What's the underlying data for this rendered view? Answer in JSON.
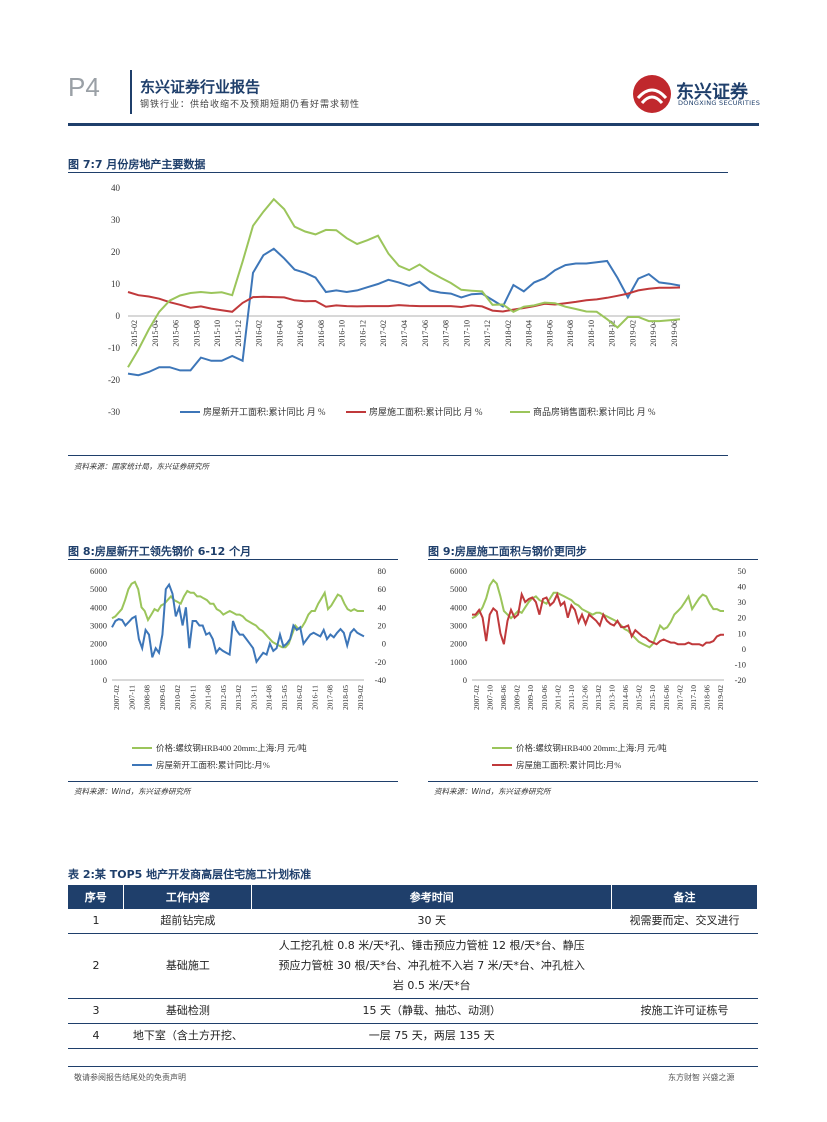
{
  "header": {
    "page": "P4",
    "report_title": "东兴证券行业报告",
    "subtitle": "钢铁行业：供给收缩不及预期短期仍看好需求韧性",
    "logo_cn": "东兴证券",
    "logo_en": "DONGXING SECURITIES"
  },
  "fig7": {
    "title": "图 7:7 月份房地产主要数据",
    "source": "资料来源：国家统计局，东兴证券研究所"
  },
  "fig8": {
    "title": "图 8:房屋新开工领先钢价 6-12 个月",
    "source": "资料来源：Wind，东兴证券研究所"
  },
  "fig9": {
    "title": "图 9:房屋施工面积与钢价更同步",
    "source": "资料来源：Wind，东兴证券研究所"
  },
  "table2": {
    "title": "表 2:某 TOP5 地产开发商高层住宅施工计划标准",
    "headers": [
      "序号",
      "工作内容",
      "参考时间",
      "备注"
    ],
    "rows": [
      {
        "no": "1",
        "work": "超前钻完成",
        "time": "30 天",
        "note": "视需要而定、交叉进行"
      },
      {
        "no": "2",
        "work": "基础施工",
        "time_l1": "人工挖孔桩 0.8 米/天*孔、锤击预应力管桩 12 根/天*台、静压",
        "time_l2": "预应力管桩 30 根/天*台、冲孔桩不入岩 7 米/天*台、冲孔桩入",
        "time_l3": "岩 0.5 米/天*台",
        "note": ""
      },
      {
        "no": "3",
        "work": "基础检测",
        "time": "15 天（静载、抽芯、动测）",
        "note": "按施工许可证栋号"
      },
      {
        "no": "4",
        "work": "地下室（含土方开挖、",
        "time": "一层 75 天，两层 135 天",
        "note": ""
      }
    ]
  },
  "footer": {
    "left": "敬请参阅报告结尾处的免责声明",
    "right": "东方财智 兴盛之源"
  },
  "colors": {
    "blue": "#3d76b8",
    "red": "#c0393b",
    "green": "#9bc55b",
    "navy": "#1f3f6b"
  },
  "chart_data": [
    {
      "type": "line",
      "id": "fig7",
      "title": "图 7:7 月份房地产主要数据",
      "xlabels": [
        "2015-02",
        "2015-04",
        "2015-06",
        "2015-08",
        "2015-10",
        "2015-12",
        "2016-02",
        "2016-04",
        "2016-06",
        "2016-08",
        "2016-10",
        "2016-12",
        "2017-02",
        "2017-04",
        "2017-06",
        "2017-08",
        "2017-10",
        "2017-12",
        "2018-02",
        "2018-04",
        "2018-06",
        "2018-08",
        "2018-10",
        "2018-12",
        "2019-02",
        "2019-04",
        "2019-06"
      ],
      "ylim": [
        -30,
        40
      ],
      "yticks": [
        -30,
        -20,
        -10,
        0,
        10,
        20,
        30,
        40
      ],
      "series": [
        {
          "name": "房屋新开工面积:累计同比 月 %",
          "color": "#3d76b8",
          "values": [
            -18,
            -18.5,
            -17.5,
            -16,
            -16,
            -17,
            -17,
            -13,
            -14,
            -14,
            -12.5,
            -14,
            13.5,
            19,
            21,
            18,
            14.5,
            13.5,
            12,
            7.5,
            8,
            7.5,
            8,
            9,
            10,
            11.3,
            10.5,
            9.4,
            10.7,
            8,
            7.3,
            7,
            5.8,
            6.8,
            7,
            5,
            3,
            9.7,
            7.7,
            10.5,
            11.8,
            14.3,
            15.9,
            16.4,
            16.4,
            16.8,
            17.2,
            11.9,
            5.8,
            11.7,
            13.1,
            10.5,
            10.1,
            9.5
          ]
        },
        {
          "name": "房屋施工面积:累计同比 月 %",
          "color": "#c0393b",
          "values": [
            7.5,
            6.5,
            6.1,
            5.4,
            4.3,
            3.5,
            2.6,
            3,
            2.3,
            1.8,
            1.3,
            4.1,
            5.9,
            6,
            5.9,
            5.8,
            4.9,
            4.6,
            4.7,
            2.9,
            3.3,
            3.1,
            3,
            3.1,
            3.1,
            3.1,
            3.4,
            3.2,
            3.1,
            3.1,
            3.1,
            3.1,
            2.8,
            3.3,
            3,
            1.7,
            1.4,
            2,
            2.5,
            3.1,
            3.8,
            3.6,
            4,
            4.4,
            4.9,
            5.2,
            5.7,
            6.3,
            7,
            8,
            8.5,
            8.8,
            8.8,
            8.9
          ]
        },
        {
          "name": "商品房销售面积:累计同比 月 %",
          "color": "#9bc55b",
          "values": [
            -16,
            -10.5,
            -4.2,
            1.3,
            4.8,
            6.4,
            7.2,
            7.5,
            7.2,
            7.4,
            6.5,
            17,
            28.2,
            32.6,
            36.5,
            33.4,
            27.9,
            26.4,
            25.5,
            26.9,
            26.8,
            24.3,
            22.5,
            23.7,
            25.1,
            19.5,
            15.7,
            14.3,
            16.1,
            13.8,
            12,
            10.3,
            8.2,
            7.9,
            7.7,
            3.5,
            3.6,
            1.3,
            2.9,
            3.3,
            4.2,
            4,
            2.9,
            2.2,
            1.4,
            1.3,
            -1,
            -3.6,
            -0.3,
            -0.3,
            -1.6,
            -1.6,
            -1.3,
            -1
          ]
        }
      ]
    },
    {
      "type": "line",
      "id": "fig8",
      "title": "图 8:房屋新开工领先钢价 6-12 个月",
      "xlabels": [
        "2007-02",
        "2007-11",
        "2008-08",
        "2009-05",
        "2010-02",
        "2010-11",
        "2011-08",
        "2012-05",
        "2013-02",
        "2013-11",
        "2014-08",
        "2015-05",
        "2016-02",
        "2016-11",
        "2017-08",
        "2018-05",
        "2019-02"
      ],
      "left_axis": {
        "ylim": [
          0,
          6000
        ],
        "ticks": [
          0,
          1000,
          2000,
          3000,
          4000,
          5000,
          6000
        ]
      },
      "right_axis": {
        "ylim": [
          -40,
          80
        ],
        "ticks": [
          -40,
          -20,
          0,
          20,
          40,
          60,
          80
        ]
      },
      "series": [
        {
          "name": "价格:螺纹钢HRB400 20mm:上海:月 元/吨",
          "axis": "left",
          "color": "#9bc55b",
          "values": [
            3400,
            3500,
            3700,
            3900,
            4400,
            5000,
            5300,
            5400,
            5000,
            4000,
            3800,
            3300,
            3600,
            3900,
            3800,
            4100,
            4200,
            4400,
            4600,
            4400,
            4300,
            4200,
            4600,
            4900,
            4800,
            4800,
            4600,
            4600,
            4500,
            4400,
            4200,
            4200,
            3900,
            3800,
            3600,
            3700,
            3800,
            3700,
            3600,
            3600,
            3500,
            3300,
            3200,
            3100,
            3000,
            2800,
            2700,
            2500,
            2300,
            2100,
            2000,
            1900,
            1800,
            1800,
            2000,
            2500,
            3000,
            2800,
            2900,
            3200,
            3600,
            3800,
            3800,
            4200,
            4500,
            4800,
            3900,
            4100,
            4400,
            4700,
            4600,
            4200,
            3900,
            3800,
            3900,
            3800,
            3800,
            3800
          ]
        },
        {
          "name": "房屋新开工面积:累计同比:月%",
          "axis": "right",
          "color": "#3d76b8",
          "values": [
            18,
            25,
            27,
            26,
            20,
            24,
            28,
            30,
            5,
            -5,
            15,
            10,
            -15,
            -5,
            -10,
            10,
            60,
            65,
            55,
            30,
            40,
            20,
            40,
            -5,
            25,
            25,
            20,
            20,
            10,
            12,
            5,
            -10,
            -5,
            -8,
            -10,
            -12,
            25,
            15,
            10,
            10,
            5,
            0,
            -5,
            -20,
            -15,
            -10,
            -12,
            0,
            -8,
            -5,
            10,
            -3,
            0,
            5,
            20,
            15,
            18,
            0,
            5,
            10,
            12,
            10,
            8,
            15,
            5,
            10,
            7,
            12,
            16,
            12,
            -2,
            12,
            16,
            12,
            10,
            8
          ]
        }
      ]
    },
    {
      "type": "line",
      "id": "fig9",
      "title": "图 9:房屋施工面积与钢价更同步",
      "xlabels": [
        "2007-02",
        "2007-10",
        "2008-06",
        "2009-02",
        "2009-10",
        "2010-06",
        "2011-02",
        "2011-10",
        "2012-06",
        "2013-02",
        "2013-10",
        "2014-06",
        "2015-02",
        "2015-10",
        "2016-06",
        "2017-02",
        "2017-10",
        "2018-06",
        "2019-02"
      ],
      "left_axis": {
        "ylim": [
          0,
          6000
        ],
        "ticks": [
          0,
          1000,
          2000,
          3000,
          4000,
          5000,
          6000
        ]
      },
      "right_axis": {
        "ylim": [
          -20,
          50
        ],
        "ticks": [
          -20,
          -10,
          0,
          10,
          20,
          30,
          40,
          50
        ]
      },
      "series": [
        {
          "name": "价格:螺纹钢HRB400 20mm:上海:月 元/吨",
          "axis": "left",
          "color": "#9bc55b",
          "values": [
            3400,
            3500,
            3700,
            4000,
            4500,
            5200,
            5500,
            5300,
            4600,
            3800,
            3600,
            3400,
            3600,
            3800,
            3700,
            4000,
            4300,
            4500,
            4600,
            4400,
            4300,
            4200,
            4500,
            4800,
            4800,
            4700,
            4600,
            4500,
            4400,
            4200,
            4100,
            3900,
            3800,
            3700,
            3600,
            3700,
            3700,
            3600,
            3500,
            3400,
            3300,
            3200,
            3000,
            2800,
            2700,
            2500,
            2300,
            2100,
            2000,
            1900,
            1800,
            2000,
            2500,
            3000,
            2800,
            2900,
            3200,
            3600,
            3800,
            4000,
            4300,
            4600,
            3900,
            4200,
            4500,
            4700,
            4600,
            4200,
            3900,
            3900,
            3800,
            3800
          ]
        },
        {
          "name": "房屋施工面积:累计同比:月%",
          "axis": "right",
          "color": "#c0393b",
          "values": [
            22,
            22,
            25,
            20,
            5,
            22,
            26,
            24,
            10,
            3,
            18,
            25,
            20,
            22,
            35,
            30,
            32,
            33,
            30,
            22,
            32,
            33,
            28,
            30,
            35,
            28,
            30,
            20,
            28,
            25,
            17,
            22,
            16,
            22,
            20,
            18,
            15,
            22,
            18,
            16,
            15,
            18,
            14,
            14,
            15,
            8,
            12,
            10,
            8,
            7,
            5,
            4,
            3,
            5,
            6,
            5,
            4,
            4,
            3,
            3,
            3,
            4,
            3,
            3,
            3,
            2,
            4,
            4,
            5,
            8,
            9,
            9
          ]
        }
      ]
    }
  ]
}
